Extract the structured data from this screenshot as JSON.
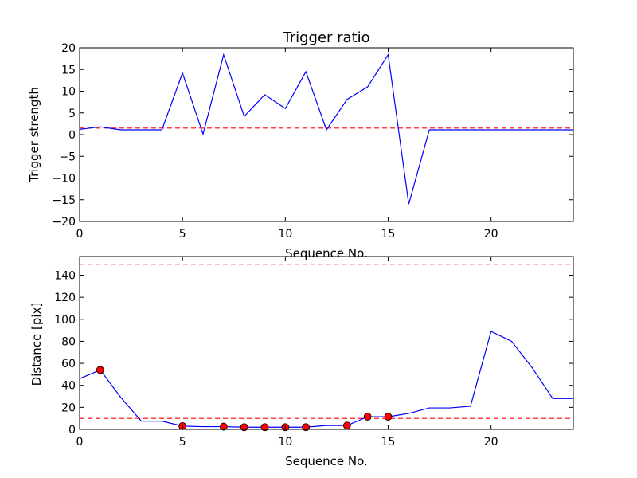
{
  "chart_data": [
    {
      "type": "line",
      "title": "Trigger ratio",
      "xlabel": "Sequence No.",
      "ylabel": "Trigger strength",
      "xlim": [
        0,
        24
      ],
      "ylim": [
        -20,
        20
      ],
      "xticks": [
        0,
        5,
        10,
        15,
        20
      ],
      "yticks": [
        -20,
        -15,
        -10,
        -5,
        0,
        5,
        10,
        15,
        20
      ],
      "line_color": "#0000ff",
      "threshold_color": "#ff0000",
      "x": [
        0,
        1,
        2,
        3,
        4,
        5,
        6,
        7,
        8,
        9,
        10,
        11,
        12,
        13,
        14,
        15,
        16,
        17,
        18,
        19,
        20,
        21,
        22,
        23,
        24
      ],
      "values": [
        1.2,
        1.8,
        1.1,
        1.1,
        1.1,
        14.2,
        0.1,
        18.4,
        4.2,
        9.2,
        6.0,
        14.5,
        1.1,
        8.1,
        11.0,
        18.4,
        -16.0,
        1.1,
        1.1,
        1.1,
        1.1,
        1.1,
        1.1,
        1.1,
        1.1
      ],
      "thresholds": [
        1.5
      ]
    },
    {
      "type": "line",
      "title": "",
      "xlabel": "Sequence No.",
      "ylabel": "Distance [pix]",
      "xlim": [
        0,
        24
      ],
      "ylim": [
        0,
        157
      ],
      "xticks": [
        0,
        5,
        10,
        15,
        20
      ],
      "yticks": [
        0,
        20,
        40,
        60,
        80,
        100,
        120,
        140
      ],
      "line_color": "#0000ff",
      "marker_color": "#ff0000",
      "threshold_color": "#ff0000",
      "x": [
        0,
        1,
        2,
        3,
        4,
        5,
        6,
        7,
        8,
        9,
        10,
        11,
        12,
        13,
        14,
        15,
        16,
        17,
        18,
        19,
        20,
        21,
        22,
        23,
        24
      ],
      "values": [
        46,
        54,
        29,
        7.5,
        7.5,
        3,
        2.5,
        2.5,
        2,
        2,
        2,
        2,
        3.5,
        3.5,
        11.5,
        11.5,
        14.5,
        19.5,
        19.5,
        21,
        89,
        80,
        56,
        28,
        28
      ],
      "markers_x": [
        1,
        5,
        7,
        8,
        9,
        10,
        11,
        13,
        14,
        15
      ],
      "thresholds": [
        150,
        10
      ]
    }
  ]
}
